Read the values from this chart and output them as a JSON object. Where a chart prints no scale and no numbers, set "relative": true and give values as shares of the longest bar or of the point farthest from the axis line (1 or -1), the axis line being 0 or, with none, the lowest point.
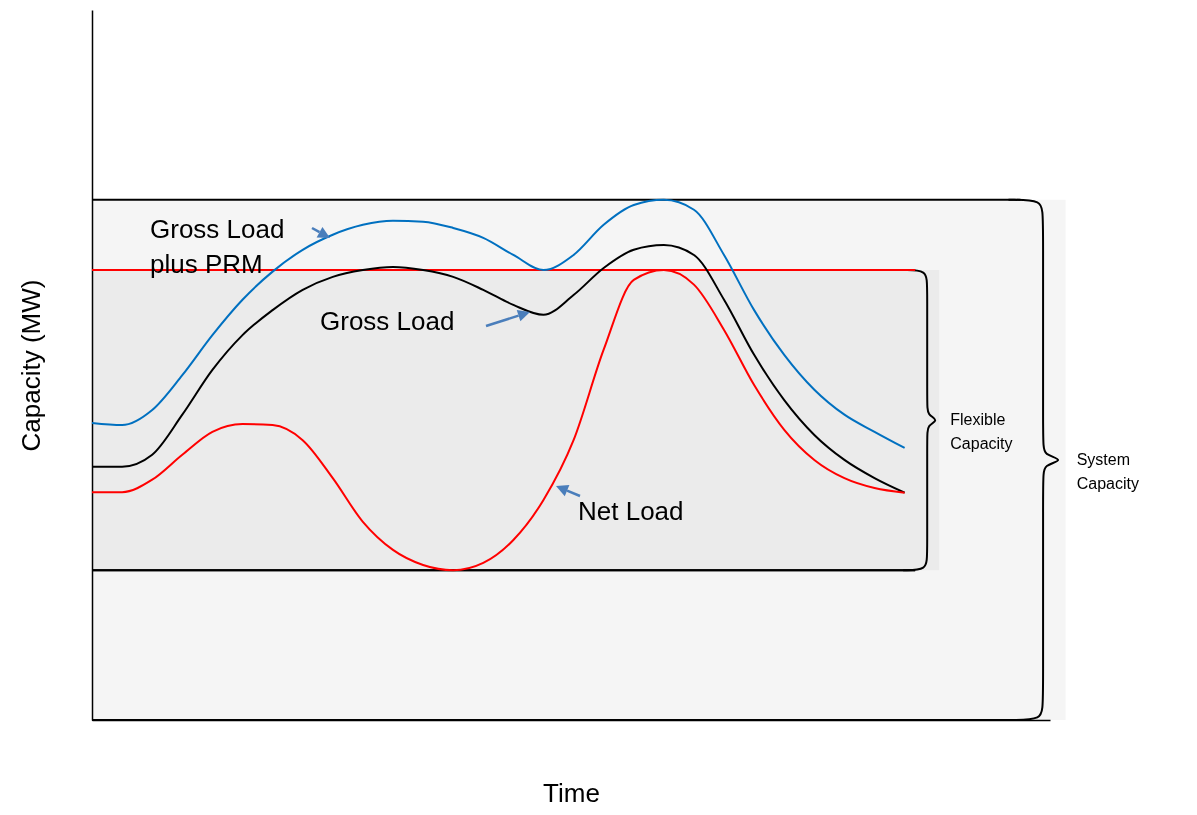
{
  "chart_data": {
    "type": "line",
    "relative": true,
    "xlabel": "Time",
    "ylabel": "Capacity (MW)",
    "tick_labels": false,
    "categories": [
      null,
      null,
      null,
      null,
      null,
      null,
      null,
      null,
      null,
      null,
      null,
      null,
      null,
      null,
      null,
      null,
      null,
      null,
      null,
      null,
      null,
      null,
      null,
      null,
      null,
      null,
      null,
      null
    ],
    "series": [
      {
        "name": "Gross Load plus PRM",
        "color": "#0070c0",
        "values": [
          0.571,
          0.567,
          0.596,
          0.663,
          0.74,
          0.808,
          0.862,
          0.904,
          0.933,
          0.952,
          0.96,
          0.958,
          0.946,
          0.927,
          0.894,
          0.865,
          0.894,
          0.952,
          0.99,
          1.0,
          0.981,
          0.894,
          0.788,
          0.702,
          0.635,
          0.587,
          0.554,
          0.523
        ]
      },
      {
        "name": "Gross Load",
        "color": "#000000",
        "values": [
          0.487,
          0.487,
          0.51,
          0.587,
          0.673,
          0.74,
          0.788,
          0.827,
          0.852,
          0.865,
          0.871,
          0.865,
          0.852,
          0.827,
          0.798,
          0.779,
          0.817,
          0.869,
          0.904,
          0.913,
          0.894,
          0.808,
          0.702,
          0.615,
          0.548,
          0.5,
          0.465,
          0.437
        ]
      },
      {
        "name": "Net Load",
        "color": "#ff0000",
        "values": [
          0.438,
          0.438,
          0.462,
          0.51,
          0.554,
          0.569,
          0.567,
          0.538,
          0.465,
          0.381,
          0.327,
          0.298,
          0.288,
          0.302,
          0.346,
          0.423,
          0.538,
          0.712,
          0.846,
          0.865,
          0.837,
          0.75,
          0.644,
          0.558,
          0.5,
          0.465,
          0.446,
          0.437
        ]
      }
    ],
    "ref_lines": [
      {
        "axis": "y",
        "value": 0.865,
        "color": "#ff0000"
      },
      {
        "axis": "y",
        "value": 0.288,
        "color": "#000000"
      }
    ],
    "bands": [
      {
        "axis": "y",
        "from": 0.288,
        "to": 0.865,
        "label": "Flexible Capacity",
        "color": "#000000"
      },
      {
        "axis": "y",
        "from": 0,
        "to": 1,
        "label": "System Capacity",
        "color": "#000000"
      }
    ]
  }
}
